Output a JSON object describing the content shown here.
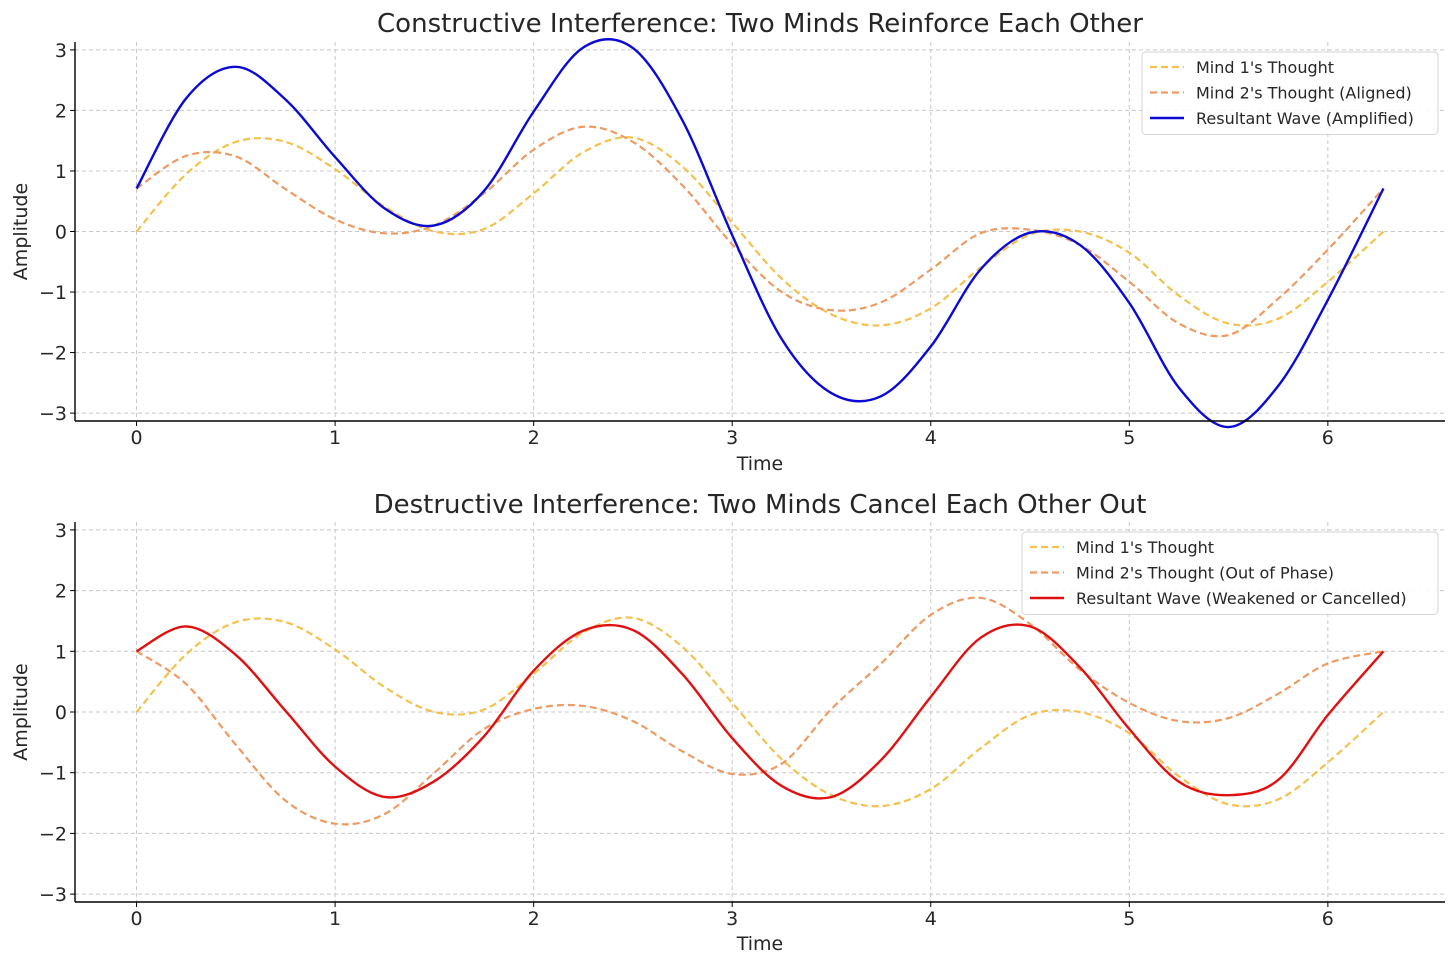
{
  "chart_data": [
    {
      "type": "line",
      "title": "Constructive Interference: Two Minds Reinforce Each Other",
      "xlabel": "Time",
      "ylabel": "Amplitude",
      "xlim": [
        -0.31,
        6.59
      ],
      "ylim": [
        -3.13,
        3.13
      ],
      "xticks": [
        0,
        1,
        2,
        3,
        4,
        5,
        6
      ],
      "xtick_labels": [
        "0",
        "1",
        "2",
        "3",
        "4",
        "5",
        "6"
      ],
      "yticks": [
        -3,
        -2,
        -1,
        0,
        1,
        2,
        3
      ],
      "ytick_labels": [
        "−3",
        "−2",
        "−1",
        "0",
        "1",
        "2",
        "3"
      ],
      "grid": true,
      "legend_position": "top-right",
      "x": [
        0,
        0.25,
        0.5,
        0.75,
        1.0,
        1.25,
        1.5,
        1.75,
        2.0,
        2.25,
        2.5,
        2.75,
        3.0,
        3.25,
        3.5,
        3.75,
        4.0,
        4.25,
        4.5,
        4.75,
        5.0,
        5.25,
        5.5,
        5.75,
        6.0,
        6.28
      ],
      "series": [
        {
          "name": "Mind 1's Thought",
          "color": "#f5c14e",
          "dash": "dashed",
          "values": [
            0.0,
            0.95,
            1.48,
            1.48,
            1.03,
            0.41,
            0.0,
            0.04,
            0.63,
            1.31,
            1.55,
            1.07,
            0.15,
            -0.78,
            -1.37,
            -1.55,
            -1.27,
            -0.6,
            -0.05,
            0.0,
            -0.35,
            -1.06,
            -1.52,
            -1.44,
            -0.83,
            0.0
          ]
        },
        {
          "name": "Mind 2's Thought (Aligned)",
          "color": "#ee9a63",
          "dash": "dashed",
          "values": [
            0.71,
            1.25,
            1.24,
            0.7,
            0.2,
            -0.03,
            0.1,
            0.63,
            1.35,
            1.73,
            1.48,
            0.76,
            -0.21,
            -1.0,
            -1.3,
            -1.17,
            -0.63,
            -0.03,
            0.03,
            -0.22,
            -0.83,
            -1.52,
            -1.71,
            -1.11,
            -0.3,
            0.71
          ]
        },
        {
          "name": "Resultant Wave (Amplified)",
          "color": "#0a0ad4",
          "dash": "solid",
          "values": [
            0.71,
            2.2,
            2.72,
            2.18,
            1.23,
            0.38,
            0.1,
            0.67,
            1.98,
            3.04,
            3.03,
            1.83,
            -0.06,
            -1.78,
            -2.67,
            -2.72,
            -1.9,
            -0.63,
            -0.02,
            -0.22,
            -1.18,
            -2.58,
            -3.23,
            -2.55,
            -1.13,
            0.71
          ]
        }
      ]
    },
    {
      "type": "line",
      "title": "Destructive Interference: Two Minds Cancel Each Other Out",
      "xlabel": "Time",
      "ylabel": "Amplitude",
      "xlim": [
        -0.31,
        6.59
      ],
      "ylim": [
        -3.13,
        3.13
      ],
      "xticks": [
        0,
        1,
        2,
        3,
        4,
        5,
        6
      ],
      "xtick_labels": [
        "0",
        "1",
        "2",
        "3",
        "4",
        "5",
        "6"
      ],
      "yticks": [
        -3,
        -2,
        -1,
        0,
        1,
        2,
        3
      ],
      "ytick_labels": [
        "−3",
        "−2",
        "−1",
        "0",
        "1",
        "2",
        "3"
      ],
      "grid": true,
      "legend_position": "top-right",
      "x": [
        0,
        0.25,
        0.5,
        0.75,
        1.0,
        1.25,
        1.5,
        1.75,
        2.0,
        2.25,
        2.5,
        2.75,
        3.0,
        3.25,
        3.5,
        3.75,
        4.0,
        4.25,
        4.5,
        4.75,
        5.0,
        5.25,
        5.5,
        5.75,
        6.0,
        6.28
      ],
      "series": [
        {
          "name": "Mind 1's Thought",
          "color": "#f5c14e",
          "dash": "dashed",
          "values": [
            0.0,
            0.95,
            1.48,
            1.48,
            1.03,
            0.41,
            0.0,
            0.04,
            0.63,
            1.31,
            1.55,
            1.07,
            0.15,
            -0.78,
            -1.37,
            -1.55,
            -1.27,
            -0.6,
            -0.05,
            0.0,
            -0.35,
            -1.06,
            -1.52,
            -1.44,
            -0.83,
            0.0
          ]
        },
        {
          "name": "Mind 2's Thought (Out of Phase)",
          "color": "#ee9a63",
          "dash": "dashed",
          "values": [
            1.0,
            0.46,
            -0.54,
            -1.46,
            -1.84,
            -1.68,
            -1.0,
            -0.28,
            0.05,
            0.1,
            -0.15,
            -0.65,
            -1.02,
            -0.85,
            0.05,
            0.8,
            1.6,
            1.88,
            1.45,
            0.7,
            0.15,
            -0.15,
            -0.1,
            0.3,
            0.8,
            1.0
          ]
        },
        {
          "name": "Resultant Wave (Weakened or Cancelled)",
          "color": "#e01010",
          "dash": "solid",
          "values": [
            1.0,
            1.41,
            0.94,
            0.02,
            -0.9,
            -1.4,
            -1.14,
            -0.4,
            0.68,
            1.34,
            1.35,
            0.62,
            -0.43,
            -1.22,
            -1.4,
            -0.79,
            0.25,
            1.22,
            1.41,
            0.74,
            -0.28,
            -1.15,
            -1.37,
            -1.12,
            -0.05,
            1.0
          ]
        }
      ]
    }
  ]
}
